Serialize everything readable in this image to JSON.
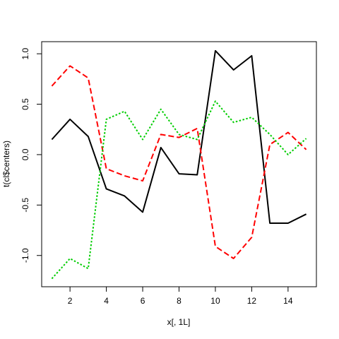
{
  "chart_data": {
    "type": "line",
    "xlabel": "x[, 1L]",
    "ylabel": "t(cl$centers)",
    "xlim": [
      0.44,
      15.56
    ],
    "ylim": [
      -1.31,
      1.12
    ],
    "x_ticks": [
      2,
      4,
      6,
      8,
      10,
      12,
      14
    ],
    "y_ticks": [
      -1.0,
      -0.5,
      0.0,
      0.5,
      1.0
    ],
    "y_tick_labels": [
      "-1.0",
      "-0.5",
      "0.0",
      "0.5",
      "1.0"
    ],
    "x": [
      1,
      2,
      3,
      4,
      5,
      6,
      7,
      8,
      9,
      10,
      11,
      12,
      13,
      14,
      15
    ],
    "series": [
      {
        "color": "#000000",
        "line_style": "solid",
        "values": [
          0.15,
          0.35,
          0.18,
          -0.34,
          -0.41,
          -0.57,
          0.07,
          -0.19,
          -0.2,
          1.03,
          0.84,
          0.98,
          -0.68,
          -0.68,
          -0.59
        ]
      },
      {
        "color": "#ff0000",
        "line_style": "dashed",
        "values": [
          0.68,
          0.88,
          0.76,
          -0.14,
          -0.21,
          -0.26,
          0.2,
          0.17,
          0.26,
          -0.91,
          -1.03,
          -0.82,
          0.1,
          0.22,
          0.05
        ]
      },
      {
        "color": "#00cd00",
        "line_style": "dotted",
        "values": [
          -1.23,
          -1.03,
          -1.13,
          0.35,
          0.43,
          0.15,
          0.45,
          0.2,
          0.15,
          0.53,
          0.32,
          0.37,
          0.2,
          0.0,
          0.16
        ]
      }
    ],
    "grid": false,
    "legend": "none"
  }
}
